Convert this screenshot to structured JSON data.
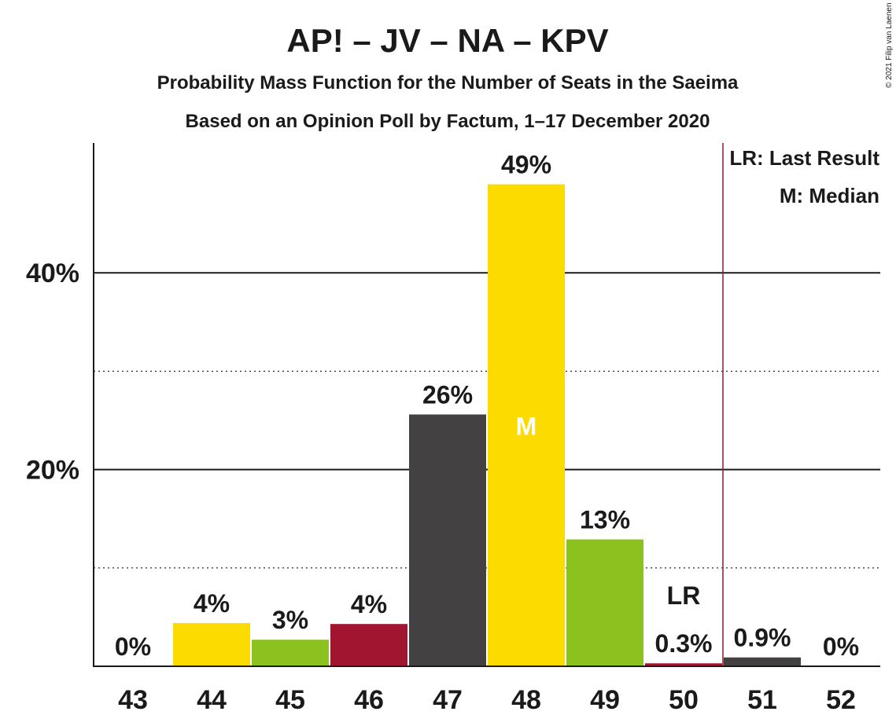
{
  "chart_data": {
    "type": "bar",
    "title": "AP! – JV – NA – KPV",
    "subtitle": "Probability Mass Function for the Number of Seats in the Saeima",
    "subtitle2": "Based on an Opinion Poll by Factum, 1–17 December 2020",
    "copyright": "© 2021 Filip van Laenen",
    "categories": [
      "43",
      "44",
      "45",
      "46",
      "47",
      "48",
      "49",
      "50",
      "51",
      "52"
    ],
    "values": [
      0,
      4.4,
      2.7,
      4.3,
      25.6,
      49.0,
      12.9,
      0.3,
      0.9,
      0
    ],
    "value_labels": [
      "0%",
      "4%",
      "3%",
      "4%",
      "26%",
      "49%",
      "13%",
      "0.3%",
      "0.9%",
      "0%"
    ],
    "bar_colors": [
      "#FCDB00",
      "#FCDB00",
      "#8CC21F",
      "#A21530",
      "#434142",
      "#FCDB00",
      "#8CC21F",
      "#A21530",
      "#434142",
      "#FCDB00"
    ],
    "ylim": [
      0,
      53.2
    ],
    "yticks": [
      20,
      40
    ],
    "ytick_labels": [
      "20%",
      "40%"
    ],
    "minor_gridlines": [
      10,
      30
    ],
    "median_seat": "48",
    "median_marker": "M",
    "last_result_seat": "50",
    "last_result_marker": "LR",
    "last_result_line_color": "#8B1A2E",
    "legend": {
      "placement": "top-right",
      "lr": "LR: Last Result",
      "m": "M: Median"
    }
  }
}
